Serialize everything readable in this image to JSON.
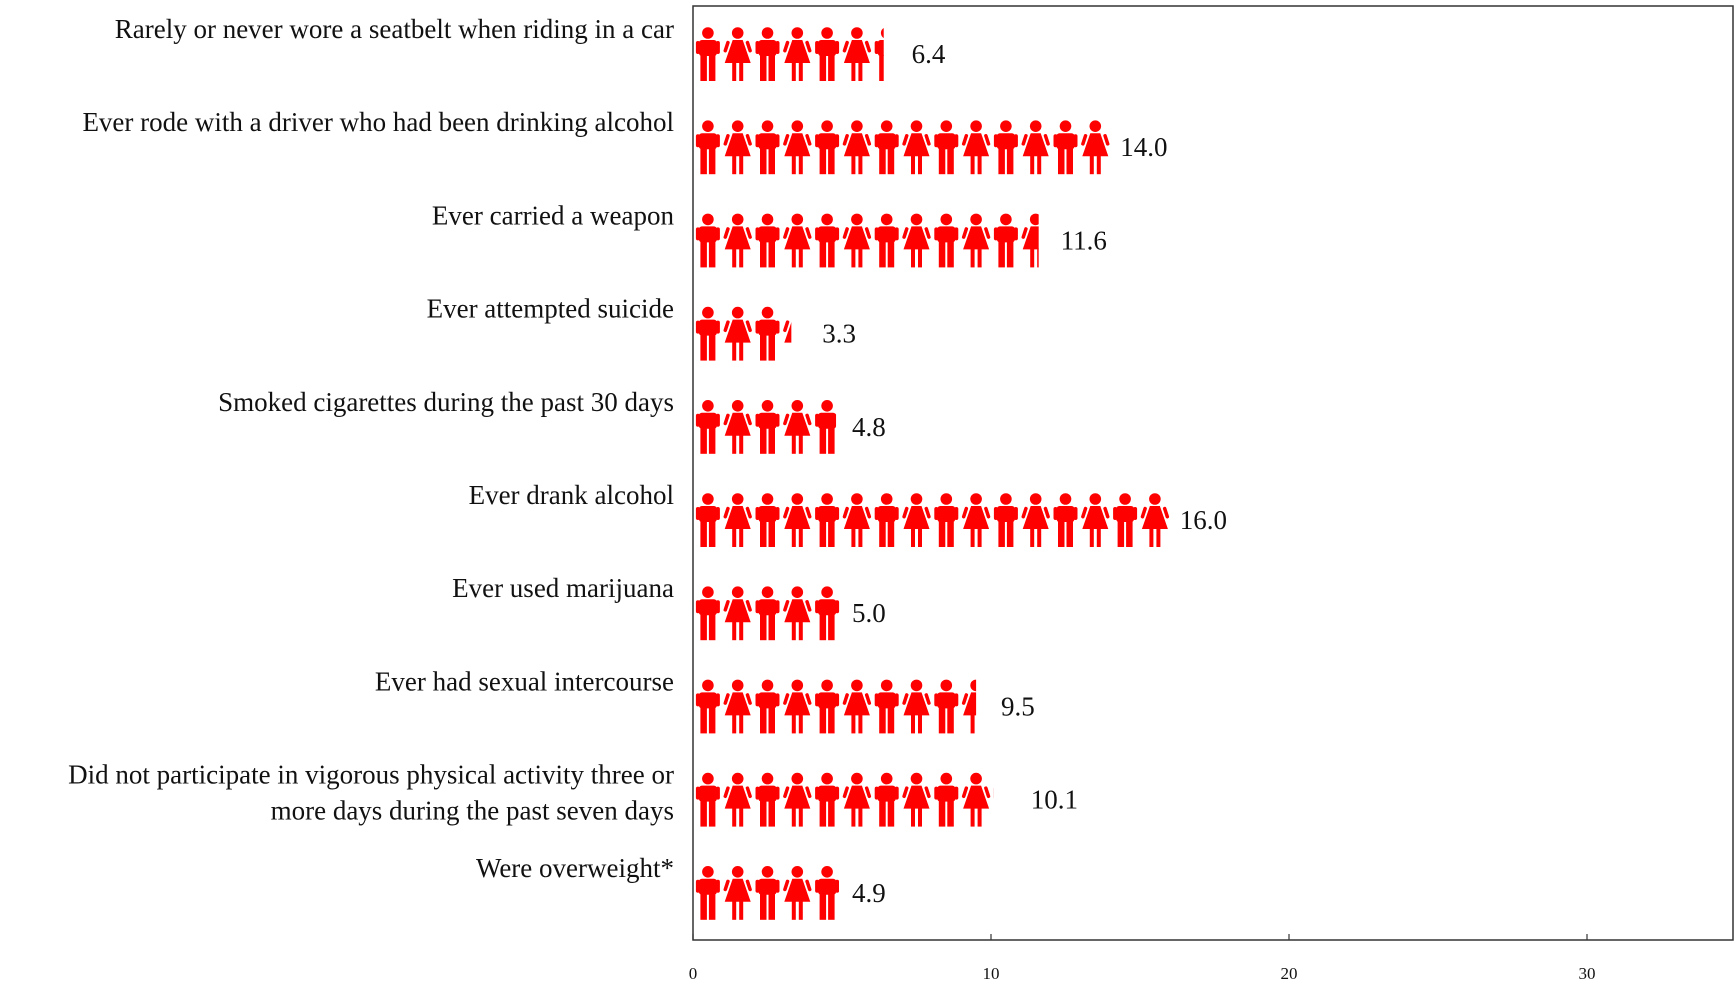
{
  "chart_data": {
    "type": "bar",
    "orientation": "horizontal",
    "mark": "pictogram-person",
    "color": "#ff0000",
    "title": "",
    "xlabel": "",
    "ylabel": "",
    "xlim": [
      0,
      35
    ],
    "xticks": [
      0,
      10,
      20,
      30
    ],
    "grid": false,
    "categories": [
      "Rarely or never wore a seatbelt when riding in a car",
      "Ever rode with a driver who had been drinking alcohol",
      "Ever carried a weapon",
      "Ever attempted suicide",
      "Smoked cigarettes during the past 30 days",
      "Ever drank alcohol",
      "Ever used marijuana",
      "Ever had sexual intercourse",
      "Did not participate in vigorous physical activity three or more days during the past seven days",
      "Were overweight*"
    ],
    "category_lines": [
      [
        "Rarely or never wore a seatbelt when riding in a car"
      ],
      [
        "Ever rode with a driver who had been drinking alcohol"
      ],
      [
        "Ever carried a weapon"
      ],
      [
        "Ever attempted suicide"
      ],
      [
        "Smoked cigarettes during the past 30 days"
      ],
      [
        "Ever drank alcohol"
      ],
      [
        "Ever used marijuana"
      ],
      [
        "Ever had sexual intercourse"
      ],
      [
        "Did not participate in vigorous physical activity three or",
        "more days during the past seven days"
      ],
      [
        "Were overweight*"
      ]
    ],
    "values": [
      6.4,
      14.0,
      11.6,
      3.3,
      4.8,
      16.0,
      5.0,
      9.5,
      10.1,
      4.9
    ],
    "value_labels": [
      "6.4",
      "14.0",
      "11.6",
      "3.3",
      "4.8",
      "16.0",
      "5.0",
      "9.5",
      "10.1",
      "4.9"
    ]
  }
}
